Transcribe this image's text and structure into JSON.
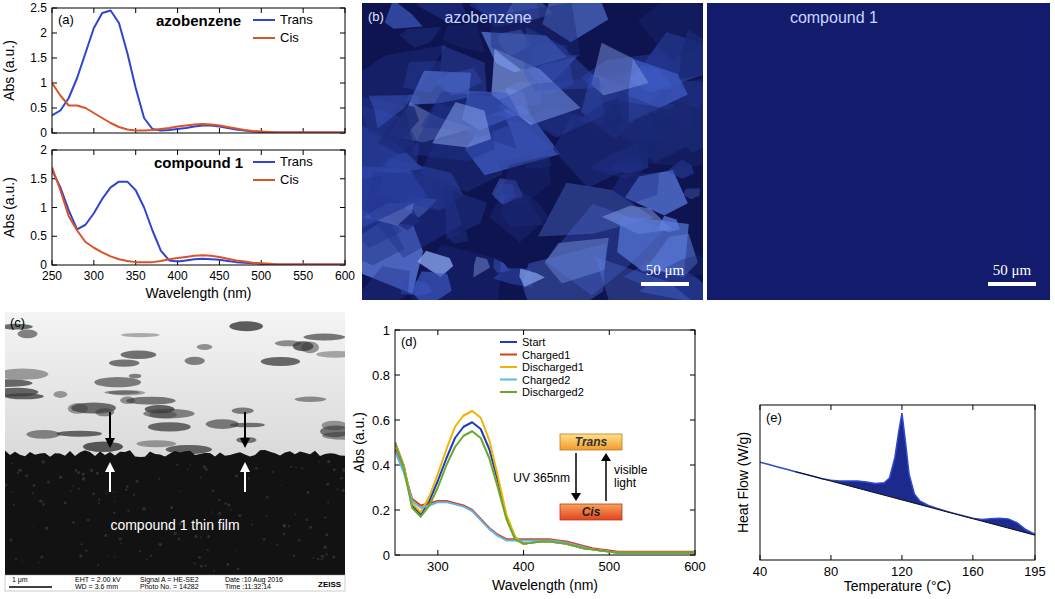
{
  "chart_data": [
    {
      "type": "line",
      "panel": "(a)",
      "title": "azobenzene",
      "y_label": "Abs (a.u.)",
      "x": [
        250,
        260,
        270,
        280,
        290,
        300,
        310,
        320,
        330,
        340,
        350,
        360,
        370,
        380,
        390,
        400,
        410,
        420,
        430,
        440,
        450,
        460,
        470,
        480,
        490,
        500,
        510,
        520,
        530,
        540,
        550,
        560,
        570,
        580,
        590,
        600
      ],
      "xlim": [
        250,
        600
      ],
      "xticks": [
        250,
        300,
        350,
        400,
        450,
        500,
        550,
        600
      ],
      "ylim": [
        0,
        2.5
      ],
      "yticks": [
        0,
        0.5,
        1,
        1.5,
        2,
        2.5
      ],
      "tick_labels": "y",
      "legend": "upper right",
      "series": [
        {
          "name": "Trans",
          "color": "#2f45d0",
          "values": [
            0.35,
            0.45,
            0.7,
            1.1,
            1.6,
            2.1,
            2.4,
            2.45,
            2.2,
            1.6,
            0.9,
            0.3,
            0.08,
            0.05,
            0.06,
            0.08,
            0.1,
            0.13,
            0.15,
            0.15,
            0.13,
            0.1,
            0.07,
            0.05,
            0.03,
            0.02,
            0.01,
            0.01,
            0.01,
            0.01,
            0.01,
            0.01,
            0.01,
            0.01,
            0.01,
            0.01
          ]
        },
        {
          "name": "Cis",
          "color": "#d9542a",
          "values": [
            1.0,
            0.75,
            0.55,
            0.55,
            0.5,
            0.4,
            0.3,
            0.2,
            0.12,
            0.07,
            0.05,
            0.05,
            0.06,
            0.08,
            0.1,
            0.13,
            0.15,
            0.17,
            0.18,
            0.17,
            0.15,
            0.12,
            0.09,
            0.06,
            0.04,
            0.03,
            0.02,
            0.01,
            0.01,
            0.01,
            0.01,
            0.01,
            0.01,
            0.01,
            0.01,
            0.01
          ]
        }
      ]
    },
    {
      "type": "line",
      "title": "compound 1",
      "x_label": "Wavelength (nm)",
      "y_label": "Abs (a.u.)",
      "x": [
        250,
        260,
        270,
        280,
        290,
        300,
        310,
        320,
        330,
        340,
        350,
        360,
        370,
        380,
        390,
        400,
        410,
        420,
        430,
        440,
        450,
        460,
        470,
        480,
        490,
        500,
        510,
        520,
        530,
        540,
        550,
        560,
        570,
        580,
        590,
        600
      ],
      "xlim": [
        250,
        600
      ],
      "xticks": [
        250,
        300,
        350,
        400,
        450,
        500,
        550,
        600
      ],
      "ylim": [
        0,
        2
      ],
      "yticks": [
        0,
        0.5,
        1,
        1.5,
        2
      ],
      "legend": "upper right",
      "series": [
        {
          "name": "Trans",
          "color": "#2f45d0",
          "values": [
            1.65,
            1.35,
            0.95,
            0.62,
            0.7,
            0.9,
            1.15,
            1.35,
            1.45,
            1.45,
            1.3,
            1.0,
            0.6,
            0.25,
            0.08,
            0.06,
            0.08,
            0.1,
            0.11,
            0.1,
            0.09,
            0.07,
            0.05,
            0.04,
            0.03,
            0.02,
            0.01,
            0.01,
            0.01,
            0.01,
            0.01,
            0.01,
            0.01,
            0.01,
            0.01,
            0.01
          ]
        },
        {
          "name": "Cis",
          "color": "#d9542a",
          "values": [
            1.7,
            1.3,
            0.85,
            0.6,
            0.4,
            0.3,
            0.22,
            0.15,
            0.1,
            0.07,
            0.05,
            0.05,
            0.05,
            0.07,
            0.1,
            0.12,
            0.14,
            0.16,
            0.17,
            0.16,
            0.14,
            0.11,
            0.08,
            0.06,
            0.04,
            0.03,
            0.02,
            0.01,
            0.01,
            0.01,
            0.01,
            0.01,
            0.01,
            0.01,
            0.01,
            0.01
          ]
        }
      ]
    },
    {
      "type": "line",
      "panel": "(d)",
      "x_label": "Wavelength (nm)",
      "y_label": "Abs (a.u.)",
      "x": [
        250,
        260,
        270,
        280,
        290,
        300,
        310,
        320,
        330,
        340,
        350,
        360,
        370,
        380,
        390,
        400,
        410,
        420,
        430,
        440,
        450,
        460,
        470,
        480,
        490,
        500,
        510,
        520,
        530,
        540,
        550,
        560,
        570,
        580,
        590,
        600
      ],
      "xlim": [
        250,
        600
      ],
      "xticks": [
        300,
        400,
        500,
        600
      ],
      "ylim": [
        0,
        1
      ],
      "yticks": [
        0,
        0.2,
        0.4,
        0.6,
        0.8,
        1
      ],
      "legend": "top",
      "annotations": [
        "Trans",
        "Cis",
        "UV 365nm",
        "visible light"
      ],
      "series": [
        {
          "name": "Start",
          "color": "#1f3bbf",
          "values": [
            0.5,
            0.4,
            0.22,
            0.18,
            0.24,
            0.33,
            0.43,
            0.52,
            0.57,
            0.59,
            0.56,
            0.47,
            0.33,
            0.17,
            0.08,
            0.05,
            0.055,
            0.06,
            0.06,
            0.055,
            0.05,
            0.04,
            0.03,
            0.025,
            0.02,
            0.015,
            0.01,
            0.01,
            0.01,
            0.01,
            0.01,
            0.01,
            0.01,
            0.01,
            0.01,
            0.01
          ]
        },
        {
          "name": "Charged1",
          "color": "#d9401e",
          "values": [
            0.47,
            0.38,
            0.25,
            0.22,
            0.23,
            0.24,
            0.24,
            0.23,
            0.22,
            0.2,
            0.16,
            0.12,
            0.09,
            0.07,
            0.07,
            0.07,
            0.07,
            0.07,
            0.07,
            0.065,
            0.06,
            0.05,
            0.04,
            0.03,
            0.025,
            0.02,
            0.015,
            0.015,
            0.015,
            0.015,
            0.015,
            0.015,
            0.015,
            0.015,
            0.015,
            0.015
          ]
        },
        {
          "name": "Discharged1",
          "color": "#f0b400",
          "values": [
            0.5,
            0.4,
            0.23,
            0.19,
            0.26,
            0.36,
            0.47,
            0.57,
            0.62,
            0.64,
            0.61,
            0.51,
            0.35,
            0.18,
            0.08,
            0.05,
            0.055,
            0.06,
            0.06,
            0.055,
            0.05,
            0.04,
            0.03,
            0.025,
            0.02,
            0.015,
            0.01,
            0.01,
            0.01,
            0.01,
            0.01,
            0.01,
            0.01,
            0.01,
            0.01,
            0.01
          ]
        },
        {
          "name": "Charged2",
          "color": "#5bb9ea",
          "values": [
            0.46,
            0.37,
            0.24,
            0.21,
            0.22,
            0.235,
            0.235,
            0.225,
            0.215,
            0.195,
            0.155,
            0.115,
            0.085,
            0.065,
            0.065,
            0.065,
            0.065,
            0.065,
            0.065,
            0.06,
            0.055,
            0.045,
            0.035,
            0.025,
            0.02,
            0.015,
            0.01,
            0.01,
            0.01,
            0.01,
            0.01,
            0.01,
            0.01,
            0.01,
            0.01,
            0.01
          ]
        },
        {
          "name": "Discharged2",
          "color": "#6aa82a",
          "values": [
            0.5,
            0.39,
            0.21,
            0.17,
            0.22,
            0.3,
            0.4,
            0.48,
            0.53,
            0.55,
            0.52,
            0.43,
            0.3,
            0.16,
            0.07,
            0.05,
            0.055,
            0.06,
            0.06,
            0.055,
            0.05,
            0.04,
            0.03,
            0.025,
            0.02,
            0.015,
            0.01,
            0.01,
            0.01,
            0.01,
            0.01,
            0.01,
            0.01,
            0.01,
            0.01,
            0.01
          ]
        }
      ]
    },
    {
      "type": "area",
      "panel": "(e)",
      "x_label": "Temperature (°C)",
      "y_label": "Heat Flow (W/g)",
      "x": [
        40,
        45,
        50,
        55,
        60,
        65,
        70,
        75,
        80,
        85,
        90,
        95,
        100,
        105,
        110,
        113,
        116,
        118,
        120,
        122,
        124,
        127,
        130,
        135,
        140,
        145,
        150,
        155,
        160,
        165,
        170,
        175,
        180,
        185,
        190,
        195
      ],
      "values": [
        6.31,
        6.16,
        6.0,
        5.85,
        5.7,
        5.55,
        5.4,
        5.24,
        5.14,
        5.09,
        5.09,
        5.09,
        5.03,
        4.93,
        4.98,
        5.29,
        6.6,
        8.14,
        9.48,
        7.62,
        5.55,
        4.26,
        3.82,
        3.52,
        3.32,
        3.15,
        2.99,
        2.84,
        2.69,
        2.61,
        2.66,
        2.7,
        2.65,
        2.4,
        1.95,
        1.65
      ],
      "baseline": {
        "x": [
          60,
          195
        ],
        "values": [
          5.7,
          1.6
        ]
      },
      "color": "#1b2a8c",
      "xlim": [
        40,
        195
      ],
      "xticks": [
        40,
        80,
        120,
        160,
        195
      ],
      "ylim": [
        0,
        10
      ],
      "tick_labels": "x"
    }
  ],
  "images": [
    {
      "panel": "(b)",
      "tiles": [
        {
          "label": "azobenzene",
          "scale_bar": "50 μm"
        },
        {
          "label": "compound 1",
          "scale_bar": "50 μm"
        }
      ]
    },
    {
      "panel": "(c)",
      "label": "compound 1 thin film",
      "scale_bar": "1 μm",
      "info": [
        "EHT = 2.00 kV",
        "WD = 3.6 mm",
        "Signal A = HE-SE2",
        "Photo No. = 14282",
        "Date :10 Aug 2016",
        "Time :11:32:14"
      ],
      "brand": "ZEISS"
    }
  ]
}
